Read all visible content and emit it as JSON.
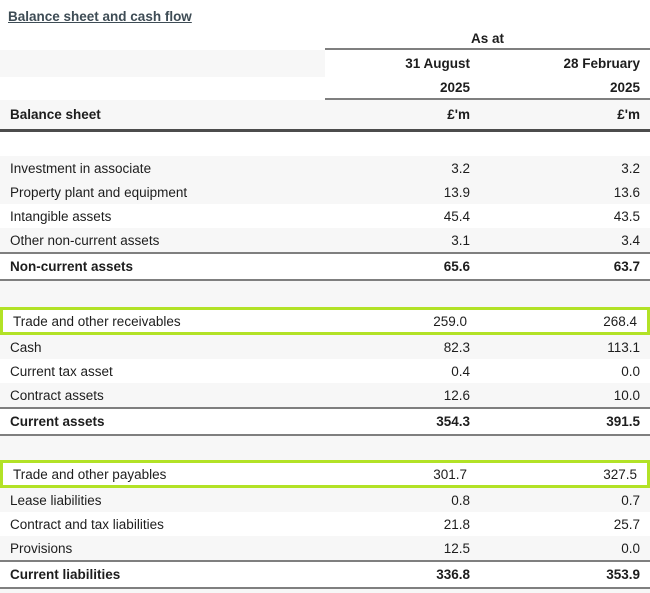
{
  "title": "Balance sheet and cash flow",
  "colors": {
    "highlight": "#b2e226",
    "stripe": "#f7f7f7",
    "rule": "#7f7f7f",
    "heavy_rule": "#4c4c4c",
    "title": "#3e4c55"
  },
  "table": {
    "header": {
      "as_at": "As at",
      "col1_date": "31 August",
      "col2_date": "28 February",
      "col1_year": "2025",
      "col2_year": "2025",
      "section_label": "Balance sheet",
      "col1_unit": "£'m",
      "col2_unit": "£'m"
    },
    "rows": [
      {
        "type": "spacer",
        "shade": false,
        "label": "",
        "col1": "",
        "col2": ""
      },
      {
        "type": "data",
        "shade": true,
        "label": "Investment in associate",
        "col1": "3.2",
        "col2": "3.2"
      },
      {
        "type": "data",
        "shade": true,
        "label": "Property plant and equipment",
        "col1": "13.9",
        "col2": "13.6"
      },
      {
        "type": "data",
        "shade": false,
        "label": "Intangible assets",
        "col1": "45.4",
        "col2": "43.5"
      },
      {
        "type": "data",
        "shade": true,
        "label": "Other non-current assets",
        "col1": "3.1",
        "col2": "3.4"
      },
      {
        "type": "total",
        "shade": false,
        "label": "Non-current assets",
        "col1": "65.6",
        "col2": "63.7"
      },
      {
        "type": "spacer2",
        "shade": true,
        "label": "",
        "col1": "",
        "col2": ""
      },
      {
        "type": "highlight",
        "shade": false,
        "label": "Trade and other receivables",
        "col1": "259.0",
        "col2": "268.4"
      },
      {
        "type": "data",
        "shade": true,
        "label": "Cash",
        "col1": "82.3",
        "col2": "113.1"
      },
      {
        "type": "data",
        "shade": false,
        "label": "Current tax asset",
        "col1": "0.4",
        "col2": "0.0"
      },
      {
        "type": "data",
        "shade": true,
        "label": "Contract assets",
        "col1": "12.6",
        "col2": "10.0"
      },
      {
        "type": "total",
        "shade": false,
        "label": "Current assets",
        "col1": "354.3",
        "col2": "391.5"
      },
      {
        "type": "spacer",
        "shade": true,
        "label": "",
        "col1": "",
        "col2": ""
      },
      {
        "type": "highlight",
        "shade": false,
        "label": "Trade and other payables",
        "col1": "301.7",
        "col2": "327.5"
      },
      {
        "type": "data",
        "shade": true,
        "label": "Lease liabilities",
        "col1": "0.8",
        "col2": "0.7"
      },
      {
        "type": "data",
        "shade": false,
        "label": "Contract and tax liabilities",
        "col1": "21.8",
        "col2": "25.7"
      },
      {
        "type": "data",
        "shade": true,
        "label": "Provisions",
        "col1": "12.5",
        "col2": "0.0"
      },
      {
        "type": "total",
        "shade": false,
        "label": "Current liabilities",
        "col1": "336.8",
        "col2": "353.9"
      }
    ]
  }
}
